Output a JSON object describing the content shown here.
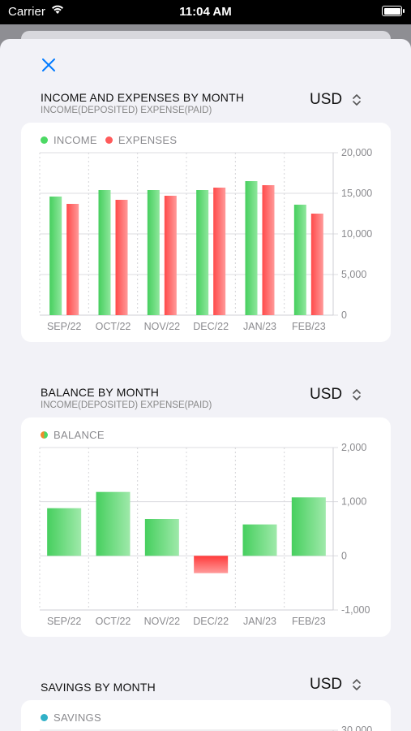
{
  "status_bar": {
    "carrier": "Carrier",
    "time": "11:04 AM"
  },
  "sections": [
    {
      "title": "INCOME AND EXPENSES BY MONTH",
      "subtitle": "INCOME(DEPOSITED) EXPENSE(PAID)",
      "currency": "USD"
    },
    {
      "title": "BALANCE BY MONTH",
      "subtitle": "INCOME(DEPOSITED) EXPENSE(PAID)",
      "currency": "USD"
    },
    {
      "title": "SAVINGS BY MONTH",
      "currency": "USD"
    }
  ],
  "legends": {
    "income": "INCOME",
    "expenses": "EXPENSES",
    "balance": "BALANCE",
    "savings": "SAVINGS"
  },
  "colors": {
    "income": "#4cd964",
    "expenses": "#ff5b5b",
    "balance_positive": "#4cd964",
    "balance_negative": "#ff4d4d",
    "savings": "#30b0c7",
    "accent": "#007aff"
  },
  "icons": {
    "close": "close-icon",
    "sort": "chevron-up-down-icon",
    "wifi": "wifi-icon",
    "battery": "battery-icon"
  },
  "chart_data": [
    {
      "type": "bar",
      "categories": [
        "SEP/22",
        "OCT/22",
        "NOV/22",
        "DEC/22",
        "JAN/23",
        "FEB/23"
      ],
      "series": [
        {
          "name": "INCOME",
          "values": [
            14600,
            15400,
            15400,
            15400,
            16500,
            13600
          ]
        },
        {
          "name": "EXPENSES",
          "values": [
            13700,
            14200,
            14700,
            15700,
            16000,
            12500
          ]
        }
      ],
      "yticks": [
        "20,000",
        "15,000",
        "10,000",
        "5,000",
        "0"
      ],
      "ylim": [
        0,
        20000
      ],
      "grid": true,
      "legend": "top-left"
    },
    {
      "type": "bar",
      "categories": [
        "SEP/22",
        "OCT/22",
        "NOV/22",
        "DEC/22",
        "JAN/23",
        "FEB/23"
      ],
      "series": [
        {
          "name": "BALANCE",
          "values": [
            880,
            1180,
            680,
            -320,
            580,
            1080
          ]
        }
      ],
      "yticks": [
        "2,000",
        "1,000",
        "0",
        "-1,000"
      ],
      "ylim": [
        -1000,
        2000
      ],
      "grid": true,
      "legend": "top-left"
    },
    {
      "type": "bar",
      "categories": [],
      "series": [
        {
          "name": "SAVINGS",
          "values": []
        }
      ],
      "yticks": [
        "30,000"
      ],
      "legend": "top-left"
    }
  ]
}
